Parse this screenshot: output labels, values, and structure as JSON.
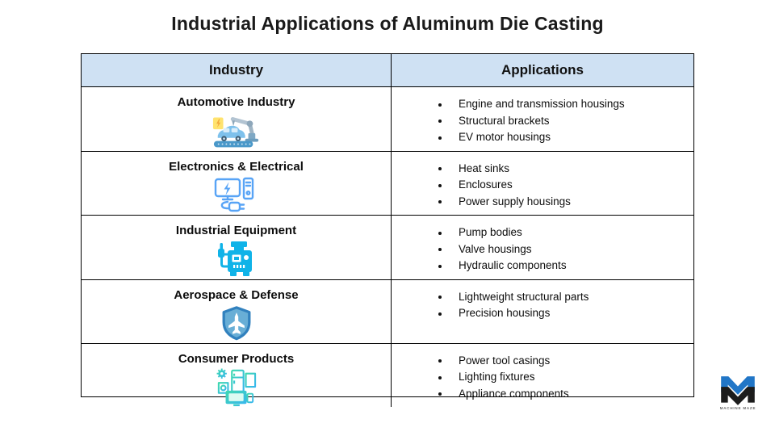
{
  "title": "Industrial Applications of Aluminum Die Casting",
  "table": {
    "headers": {
      "industry": "Industry",
      "applications": "Applications"
    },
    "rows": [
      {
        "industry": "Automotive Industry",
        "icon": "automotive-robot-arm-car-icon",
        "applications": [
          "Engine and transmission housings",
          "Structural brackets",
          "EV motor housings"
        ]
      },
      {
        "industry": "Electronics & Electrical",
        "icon": "computer-monitor-plug-icon",
        "applications": [
          "Heat sinks",
          "Enclosures",
          "Power supply housings"
        ]
      },
      {
        "industry": "Industrial Equipment",
        "icon": "generator-machine-icon",
        "applications": [
          "Pump bodies",
          "Valve housings",
          "Hydraulic components"
        ]
      },
      {
        "industry": "Aerospace & Defense",
        "icon": "shield-jet-icon",
        "applications": [
          "Lightweight structural parts",
          "Precision housings"
        ]
      },
      {
        "industry": "Consumer Products",
        "icon": "home-appliances-icon",
        "applications": [
          "Power tool casings",
          "Lighting fixtures",
          "Appliance components"
        ]
      }
    ]
  },
  "logo": {
    "text": "MACHINE MAZE"
  },
  "colors": {
    "header_bg": "#cfe1f3",
    "border": "#000000",
    "electronics_blue": "#58a4f6",
    "industrial_cyan": "#10b3e8",
    "aerospace_fill": "#68aed6",
    "aerospace_border": "#3181be",
    "consumer_teal": "#3fd9ae",
    "consumer_blue": "#38b6ef",
    "logo_blue": "#2176c7"
  }
}
